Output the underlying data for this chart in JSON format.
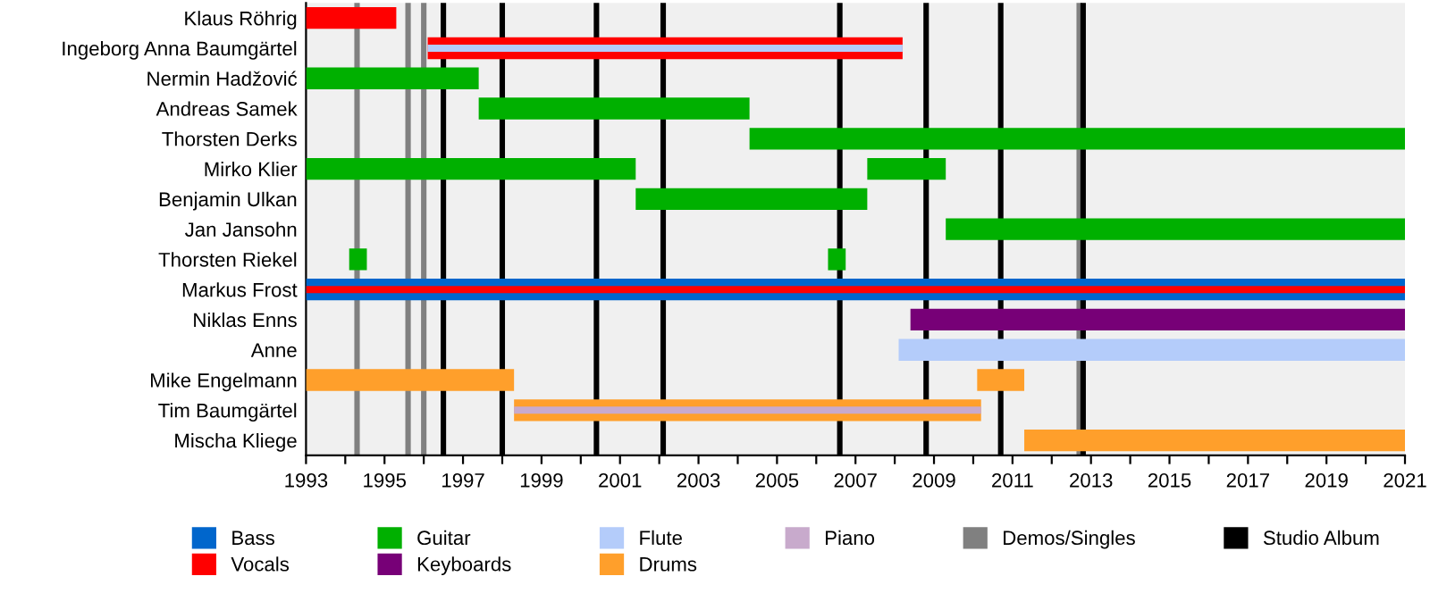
{
  "chart_data": {
    "type": "bar",
    "orientation": "horizontal",
    "categories": [
      "Klaus Röhrig",
      "Ingeborg Anna Baumgärtel",
      "Nermin Hadžović",
      "Andreas Samek",
      "Thorsten Derks",
      "Mirko Klier",
      "Benjamin Ulkan",
      "Jan Jansohn",
      "Thorsten Riekel",
      "Markus Frost",
      "Niklas Enns",
      "Anne",
      "Mike Engelmann",
      "Tim Baumgärtel",
      "Mischa Kliege"
    ],
    "series": [
      {
        "name": "Bass",
        "color": "#0066cc",
        "base": [
          null,
          null,
          null,
          null,
          null,
          null,
          null,
          null,
          null,
          1993,
          null,
          null,
          null,
          null,
          null
        ],
        "values": [
          null,
          null,
          null,
          null,
          null,
          null,
          null,
          null,
          null,
          28,
          null,
          null,
          null,
          null,
          null
        ]
      },
      {
        "name": "Vocals",
        "color": "#ff0000",
        "base": [
          1993,
          1996.1,
          null,
          null,
          null,
          null,
          null,
          null,
          null,
          1993,
          null,
          null,
          null,
          null,
          null
        ],
        "values": [
          2.3,
          12.1,
          null,
          null,
          null,
          null,
          null,
          null,
          null,
          28,
          null,
          null,
          null,
          null,
          null
        ]
      },
      {
        "name": "Guitar",
        "color": "#00b000",
        "base": [
          null,
          null,
          1993,
          1997.4,
          2004.3,
          1993,
          2001.4,
          2009.3,
          1994.1,
          null,
          null,
          null,
          null,
          null,
          null
        ],
        "values": [
          null,
          null,
          4.4,
          6.9,
          16.7,
          8.4,
          5.9,
          11.7,
          0.45,
          null,
          null,
          null,
          null,
          null,
          null
        ]
      },
      {
        "color": "#00b000",
        "base": [
          null,
          null,
          null,
          null,
          null,
          2007.3,
          null,
          null,
          2006.3,
          null,
          null,
          null,
          null,
          null,
          null
        ],
        "values": [
          null,
          null,
          null,
          null,
          null,
          2.0,
          null,
          null,
          0.45,
          null,
          null,
          null,
          null,
          null,
          null
        ]
      },
      {
        "name": "Keyboards",
        "color": "#770077",
        "base": [
          null,
          null,
          null,
          null,
          null,
          null,
          null,
          null,
          null,
          null,
          2008.4,
          null,
          null,
          null,
          null
        ],
        "values": [
          null,
          null,
          null,
          null,
          null,
          null,
          null,
          null,
          null,
          null,
          12.6,
          null,
          null,
          null,
          null
        ]
      },
      {
        "name": "Flute",
        "color": "#b4ccfa",
        "base": [
          null,
          1996.1,
          null,
          null,
          null,
          null,
          null,
          null,
          null,
          null,
          null,
          2008.1,
          null,
          null,
          null
        ],
        "values": [
          null,
          12.1,
          null,
          null,
          null,
          null,
          null,
          null,
          null,
          null,
          null,
          12.9,
          null,
          null,
          null
        ]
      },
      {
        "name": "Drums",
        "color": "#ff9f2b",
        "base": [
          null,
          null,
          null,
          null,
          null,
          null,
          null,
          null,
          null,
          null,
          null,
          null,
          1993,
          1998.3,
          2011.3
        ],
        "values": [
          null,
          null,
          null,
          null,
          null,
          null,
          null,
          null,
          null,
          null,
          null,
          null,
          5.3,
          11.9,
          9.7
        ]
      },
      {
        "color": "#ff9f2b",
        "base": [
          null,
          null,
          null,
          null,
          null,
          null,
          null,
          null,
          null,
          null,
          null,
          null,
          2010.1,
          null,
          null
        ],
        "values": [
          null,
          null,
          null,
          null,
          null,
          null,
          null,
          null,
          null,
          null,
          null,
          null,
          1.2,
          null,
          null
        ]
      },
      {
        "name": "Piano",
        "color": "#c8aacc",
        "base": [
          null,
          null,
          null,
          null,
          null,
          null,
          null,
          null,
          null,
          null,
          null,
          null,
          null,
          1998.3,
          null
        ],
        "values": [
          null,
          null,
          null,
          null,
          null,
          null,
          null,
          null,
          null,
          null,
          null,
          null,
          null,
          11.9,
          null
        ]
      }
    ],
    "ref_lines": [
      {
        "axis": "x",
        "value": 1994.3,
        "color": "#808080",
        "label": "Demos/Singles"
      },
      {
        "axis": "x",
        "value": 1995.6,
        "color": "#808080"
      },
      {
        "axis": "x",
        "value": 1996.0,
        "color": "#808080"
      },
      {
        "axis": "x",
        "value": 2012.7,
        "color": "#808080"
      },
      {
        "axis": "x",
        "value": 1996.5,
        "color": "#000000",
        "label": "Studio Album"
      },
      {
        "axis": "x",
        "value": 1998.0,
        "color": "#000000"
      },
      {
        "axis": "x",
        "value": 2000.4,
        "color": "#000000"
      },
      {
        "axis": "x",
        "value": 2002.1,
        "color": "#000000"
      },
      {
        "axis": "x",
        "value": 2006.6,
        "color": "#000000"
      },
      {
        "axis": "x",
        "value": 2008.8,
        "color": "#000000"
      },
      {
        "axis": "x",
        "value": 2010.7,
        "color": "#000000"
      },
      {
        "axis": "x",
        "value": 2012.8,
        "color": "#000000"
      }
    ],
    "xlim": [
      1993,
      2021
    ],
    "xticks": [
      1993,
      {
        "value": 1994,
        "label": null
      },
      1995,
      {
        "value": 1996,
        "label": null
      },
      1997,
      {
        "value": 1998,
        "label": null
      },
      1999,
      {
        "value": 2000,
        "label": null
      },
      2001,
      {
        "value": 2002,
        "label": null
      },
      2003,
      {
        "value": 2004,
        "label": null
      },
      2005,
      {
        "value": 2006,
        "label": null
      },
      2007,
      {
        "value": 2008,
        "label": null
      },
      2009,
      {
        "value": 2010,
        "label": null
      },
      2011,
      {
        "value": 2012,
        "label": null
      },
      2013,
      {
        "value": 2014,
        "label": null
      },
      2015,
      {
        "value": 2016,
        "label": null
      },
      2017,
      {
        "value": 2018,
        "label": null
      },
      2019,
      {
        "value": 2020,
        "label": null
      },
      2021
    ],
    "grid": "y",
    "legend": "bottom"
  }
}
